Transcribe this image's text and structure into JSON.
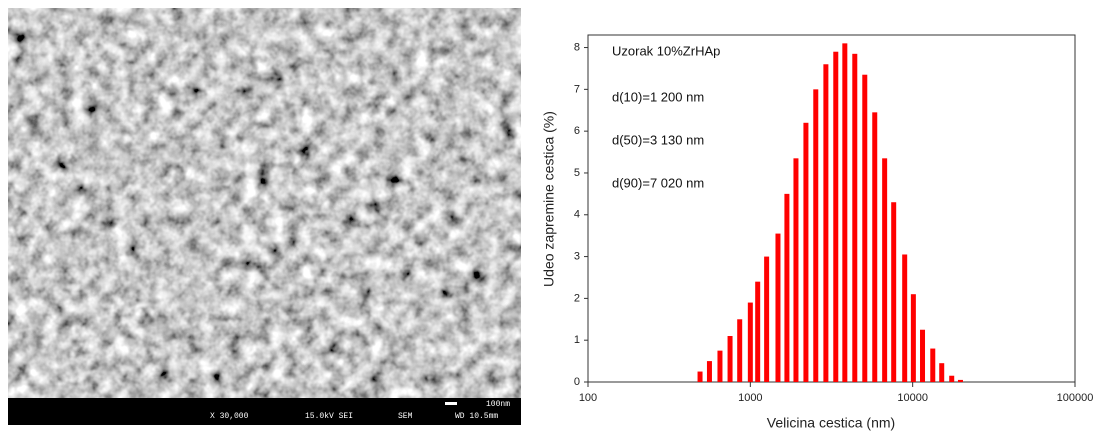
{
  "sem_image": {
    "scale_bar": "100nm",
    "magnification": "X 30,000",
    "voltage": "15.0kV SEI",
    "detector": "SEM",
    "working_distance": "WD 10.5mm"
  },
  "chart_data": {
    "type": "bar",
    "x_label": "Velicina cestica (nm)",
    "y_label": "Udeo zapremine cestica (%)",
    "annotations": [
      "Uzorak 10%ZrHAp",
      "d(10)=1 200 nm",
      "d(50)=3 130 nm",
      "d(90)=7 020 nm"
    ],
    "x": [
      490,
      560,
      650,
      750,
      860,
      1000,
      1110,
      1260,
      1480,
      1680,
      1910,
      2200,
      2530,
      2920,
      3360,
      3820,
      4400,
      5070,
      5840,
      6720,
      7640,
      8930,
      10100,
      11500,
      13300,
      15100,
      17400,
      19700
    ],
    "values": [
      0.25,
      0.5,
      0.75,
      1.1,
      1.5,
      1.9,
      2.4,
      3.0,
      3.55,
      4.5,
      5.35,
      6.2,
      7.0,
      7.6,
      7.9,
      8.1,
      7.85,
      7.35,
      6.45,
      5.35,
      4.3,
      3.05,
      2.1,
      1.25,
      0.8,
      0.45,
      0.15,
      0.05
    ],
    "color": "#ff0000",
    "xlog": true,
    "xlim": [
      100,
      100000
    ],
    "xticks": [
      100,
      1000,
      10000,
      100000
    ],
    "ylim": [
      0,
      8.3
    ],
    "yticks": [
      0,
      1,
      2,
      3,
      4,
      5,
      6,
      7,
      8
    ]
  }
}
